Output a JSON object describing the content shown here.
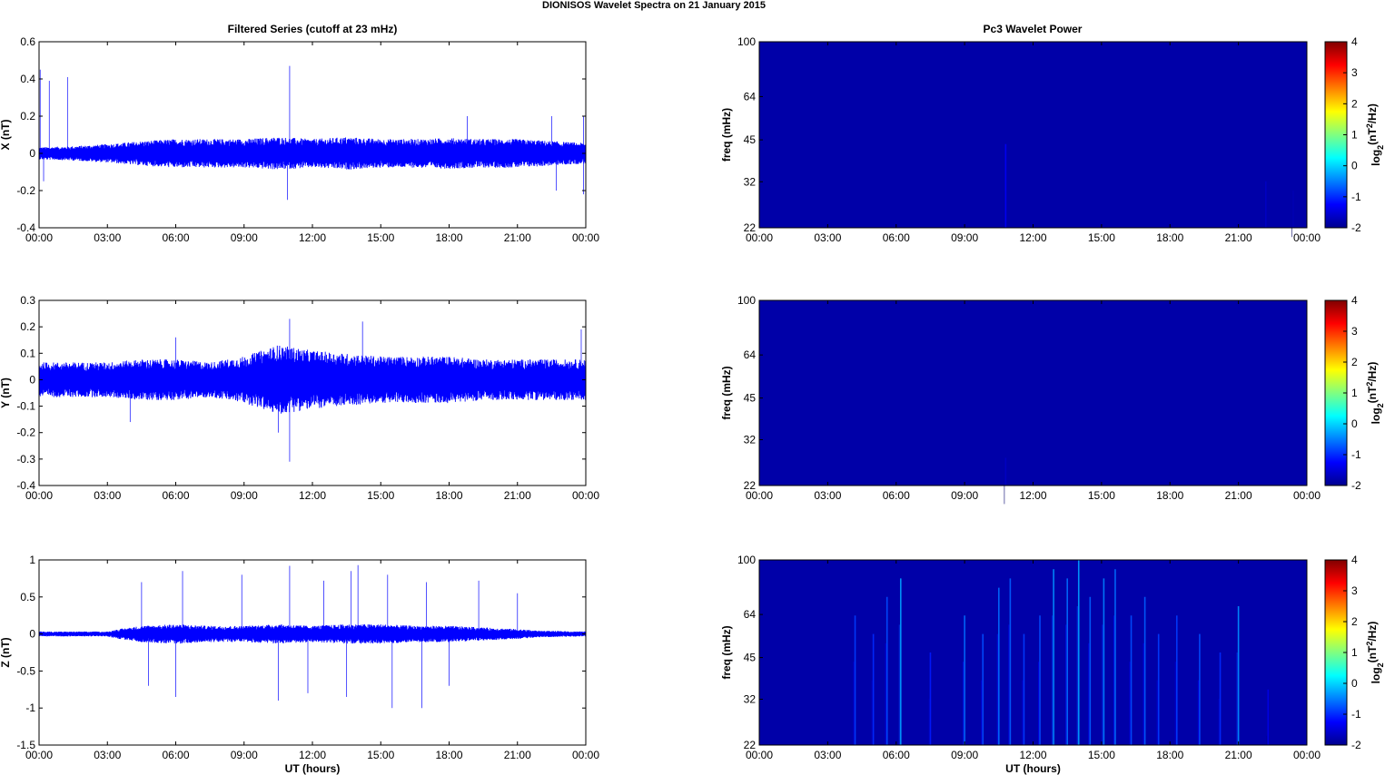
{
  "figure": {
    "title": "DIONISOS Wavelet Spectra on 21 January   2015"
  },
  "chart_data": [
    {
      "type": "line",
      "title": "Filtered Series (cutoff at 23 mHz)",
      "xlabel": "",
      "ylabel": "X (nT)",
      "xticks": [
        "00:00",
        "03:00",
        "06:00",
        "09:00",
        "12:00",
        "15:00",
        "18:00",
        "21:00",
        "00:00"
      ],
      "xlim_hours": [
        0,
        24
      ],
      "ylim": [
        -0.4,
        0.6
      ],
      "yticks": [
        -0.4,
        -0.2,
        0,
        0.2,
        0.4,
        0.6
      ],
      "series": [
        {
          "color": "#0000ff",
          "envelope_hours": [
            0,
            1.5,
            3,
            4.5,
            6,
            7.5,
            9,
            10.5,
            12,
            13.5,
            15,
            16.5,
            18,
            19.5,
            21,
            22.5,
            24
          ],
          "envelope_amp": [
            0.03,
            0.035,
            0.045,
            0.06,
            0.07,
            0.07,
            0.07,
            0.08,
            0.07,
            0.08,
            0.07,
            0.07,
            0.075,
            0.07,
            0.07,
            0.06,
            0.05
          ],
          "spikes": [
            [
              0.05,
              0.45
            ],
            [
              0.45,
              0.39
            ],
            [
              1.25,
              0.41
            ],
            [
              11,
              0.47
            ],
            [
              10.9,
              -0.25
            ],
            [
              18.8,
              0.2
            ],
            [
              22.5,
              0.2
            ],
            [
              23.9,
              0.2
            ],
            [
              23.9,
              -0.22
            ],
            [
              22.7,
              -0.2
            ],
            [
              0.2,
              -0.15
            ]
          ]
        }
      ]
    },
    {
      "type": "line",
      "xlabel": "",
      "ylabel": "Y (nT)",
      "xticks": [
        "00:00",
        "03:00",
        "06:00",
        "09:00",
        "12:00",
        "15:00",
        "18:00",
        "21:00",
        "00:00"
      ],
      "xlim_hours": [
        0,
        24
      ],
      "ylim": [
        -0.4,
        0.3
      ],
      "yticks": [
        -0.4,
        -0.3,
        -0.2,
        -0.1,
        0,
        0.1,
        0.2,
        0.3
      ],
      "series": [
        {
          "color": "#0000ff",
          "envelope_hours": [
            0,
            1.5,
            3,
            4.5,
            6,
            7.5,
            9,
            10.5,
            12,
            13.5,
            15,
            16.5,
            18,
            19.5,
            21,
            22.5,
            24
          ],
          "envelope_amp": [
            0.06,
            0.06,
            0.06,
            0.07,
            0.07,
            0.06,
            0.08,
            0.12,
            0.1,
            0.09,
            0.08,
            0.08,
            0.08,
            0.07,
            0.07,
            0.07,
            0.07
          ],
          "spikes": [
            [
              11,
              -0.31
            ],
            [
              11,
              0.23
            ],
            [
              14.2,
              0.22
            ],
            [
              6,
              0.16
            ],
            [
              23.8,
              0.19
            ],
            [
              10.5,
              -0.2
            ],
            [
              4,
              -0.16
            ]
          ]
        }
      ]
    },
    {
      "type": "line",
      "xlabel": "UT (hours)",
      "ylabel": "Z (nT)",
      "xticks": [
        "00:00",
        "03:00",
        "06:00",
        "09:00",
        "12:00",
        "15:00",
        "18:00",
        "21:00",
        "00:00"
      ],
      "xlim_hours": [
        0,
        24
      ],
      "ylim": [
        -1.5,
        1
      ],
      "yticks": [
        -1.5,
        -1,
        -0.5,
        0,
        0.5,
        1
      ],
      "series": [
        {
          "color": "#0000ff",
          "envelope_hours": [
            0,
            1.5,
            3,
            3.5,
            4.5,
            6,
            7.5,
            9,
            10.5,
            12,
            13.5,
            15,
            16.5,
            18,
            19.5,
            21,
            22,
            24
          ],
          "envelope_amp": [
            0.03,
            0.03,
            0.03,
            0.06,
            0.1,
            0.12,
            0.1,
            0.1,
            0.12,
            0.1,
            0.12,
            0.12,
            0.1,
            0.1,
            0.08,
            0.06,
            0.04,
            0.03
          ],
          "spikes": [
            [
              14,
              0.93
            ],
            [
              11,
              0.92
            ],
            [
              6.3,
              0.85
            ],
            [
              8.9,
              0.8
            ],
            [
              13.7,
              0.85
            ],
            [
              15.3,
              0.8
            ],
            [
              4.5,
              0.7
            ],
            [
              12.5,
              0.72
            ],
            [
              17,
              0.7
            ],
            [
              19.3,
              0.72
            ],
            [
              21,
              0.55
            ],
            [
              6,
              -0.85
            ],
            [
              10.5,
              -0.9
            ],
            [
              15.5,
              -1.0
            ],
            [
              16.8,
              -1.0
            ],
            [
              13.5,
              -0.85
            ],
            [
              4.8,
              -0.7
            ],
            [
              11.8,
              -0.8
            ],
            [
              18,
              -0.7
            ]
          ]
        }
      ]
    },
    {
      "type": "heatmap",
      "title": "Pc3 Wavelet Power",
      "xlabel": "",
      "ylabel": "freq (mHz)",
      "xticks": [
        "00:00",
        "03:00",
        "06:00",
        "09:00",
        "12:00",
        "15:00",
        "18:00",
        "21:00",
        "00:00"
      ],
      "xlim_hours": [
        0,
        24
      ],
      "yticks": [
        "22",
        "32",
        "45",
        "64",
        "100"
      ],
      "ylim_mHz": [
        22,
        100
      ],
      "yscale": "log",
      "colorbar": {
        "label": "log2(nT2/Hz)",
        "ticks": [
          "-2",
          "-1",
          "0",
          "1",
          "2",
          "3",
          "4"
        ],
        "clim": [
          -2,
          4
        ],
        "colormap": "jet"
      },
      "streaks": [
        [
          10.8,
          0.45,
          -1.3
        ],
        [
          22.2,
          0.25,
          -1.6
        ],
        [
          23.4,
          0.2,
          -1.7
        ]
      ]
    },
    {
      "type": "heatmap",
      "xlabel": "",
      "ylabel": "freq (mHz)",
      "xticks": [
        "00:00",
        "03:00",
        "06:00",
        "09:00",
        "12:00",
        "15:00",
        "18:00",
        "21:00",
        "00:00"
      ],
      "xlim_hours": [
        0,
        24
      ],
      "yticks": [
        "22",
        "32",
        "45",
        "64",
        "100"
      ],
      "ylim_mHz": [
        22,
        100
      ],
      "yscale": "log",
      "colorbar": {
        "label": "log2(nT2/Hz)",
        "ticks": [
          "-2",
          "-1",
          "0",
          "1",
          "2",
          "3",
          "4"
        ],
        "clim": [
          -2,
          4
        ],
        "colormap": "jet"
      },
      "streaks": [
        [
          10.8,
          0.15,
          -1.6
        ]
      ]
    },
    {
      "type": "heatmap",
      "xlabel": "UT (hours)",
      "ylabel": "freq (mHz)",
      "xticks": [
        "00:00",
        "03:00",
        "06:00",
        "09:00",
        "12:00",
        "15:00",
        "18:00",
        "21:00",
        "00:00"
      ],
      "xlim_hours": [
        0,
        24
      ],
      "yticks": [
        "22",
        "32",
        "45",
        "64",
        "100"
      ],
      "ylim_mHz": [
        22,
        100
      ],
      "yscale": "log",
      "colorbar": {
        "label": "log2(nT2/Hz)",
        "ticks": [
          "-2",
          "-1",
          "0",
          "1",
          "2",
          "3",
          "4"
        ],
        "clim": [
          -2,
          4
        ],
        "colormap": "jet"
      },
      "streaks": [
        [
          4.2,
          0.7,
          -0.9
        ],
        [
          5.0,
          0.6,
          -1.0
        ],
        [
          5.6,
          0.8,
          -0.8
        ],
        [
          6.2,
          0.9,
          -0.3
        ],
        [
          7.5,
          0.5,
          -1.1
        ],
        [
          9.0,
          0.7,
          -0.6
        ],
        [
          9.8,
          0.6,
          -0.8
        ],
        [
          10.5,
          0.85,
          -0.6
        ],
        [
          11.0,
          0.9,
          -0.7
        ],
        [
          11.6,
          0.6,
          -0.9
        ],
        [
          12.3,
          0.7,
          -0.8
        ],
        [
          12.9,
          0.95,
          -0.4
        ],
        [
          13.5,
          0.9,
          -0.6
        ],
        [
          14.0,
          1.0,
          -0.3
        ],
        [
          14.5,
          0.8,
          -0.7
        ],
        [
          15.1,
          0.9,
          -0.5
        ],
        [
          15.6,
          0.95,
          -0.6
        ],
        [
          16.3,
          0.7,
          -0.8
        ],
        [
          16.9,
          0.8,
          -0.7
        ],
        [
          17.5,
          0.6,
          -0.9
        ],
        [
          18.3,
          0.7,
          -0.9
        ],
        [
          19.3,
          0.6,
          -0.8
        ],
        [
          20.2,
          0.5,
          -1.0
        ],
        [
          21.0,
          0.75,
          -0.4
        ],
        [
          22.3,
          0.3,
          -1.4
        ]
      ]
    }
  ]
}
